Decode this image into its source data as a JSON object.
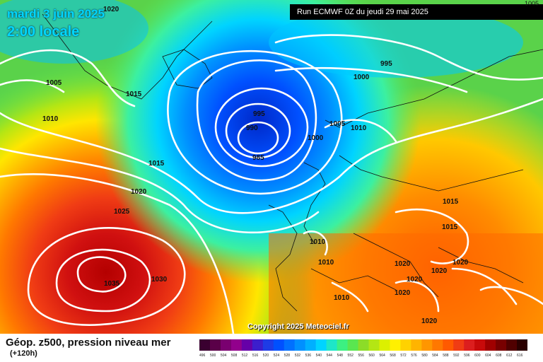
{
  "header": {
    "date": "mardi 3 juin 2025",
    "time": "2:00 locale",
    "run": "Run ECMWF 0Z du jeudi 29 mai 2025",
    "corner_value": "1005"
  },
  "copyright": "Copyright 2025 Meteociel.fr",
  "legend": {
    "title": "Géop. z500, pression niveau mer",
    "subtitle": "(+120h)",
    "scale_values": [
      "496",
      "500",
      "504",
      "508",
      "512",
      "516",
      "520",
      "524",
      "528",
      "532",
      "536",
      "540",
      "544",
      "548",
      "552",
      "556",
      "560",
      "564",
      "568",
      "572",
      "576",
      "580",
      "584",
      "588",
      "592",
      "596",
      "600",
      "604",
      "608",
      "612",
      "616"
    ],
    "scale_colors": [
      "#3a0030",
      "#5a0048",
      "#7a0070",
      "#92008c",
      "#6600a8",
      "#3c1ecc",
      "#1e3ce6",
      "#0050ff",
      "#0070ff",
      "#0090ff",
      "#00b0ff",
      "#00d4ff",
      "#1ee6c8",
      "#3cf082",
      "#5ae650",
      "#8cdc28",
      "#b4e614",
      "#dcf000",
      "#fff000",
      "#ffd200",
      "#ffb400",
      "#ff9600",
      "#ff7800",
      "#ff5a00",
      "#f03c14",
      "#dc1e1e",
      "#c80a0a",
      "#a00000",
      "#780000",
      "#500000",
      "#2a0000"
    ]
  },
  "isobar_labels": [
    {
      "text": "1020"
    },
    {
      "text": "1005"
    },
    {
      "text": "1010"
    },
    {
      "text": "1015"
    },
    {
      "text": "995"
    },
    {
      "text": "990"
    },
    {
      "text": "985"
    },
    {
      "text": "1000"
    },
    {
      "text": "1000"
    },
    {
      "text": "995"
    },
    {
      "text": "1005"
    },
    {
      "text": "1010"
    },
    {
      "text": "1015"
    },
    {
      "text": "1020"
    },
    {
      "text": "1025"
    },
    {
      "text": "1035"
    },
    {
      "text": "1030"
    },
    {
      "text": "1015"
    },
    {
      "text": "1015"
    },
    {
      "text": "1010"
    },
    {
      "text": "1010"
    },
    {
      "text": "1020"
    },
    {
      "text": "1020"
    },
    {
      "text": "1020"
    },
    {
      "text": "1020"
    },
    {
      "text": "1020"
    },
    {
      "text": "1010"
    },
    {
      "text": "1020"
    }
  ]
}
